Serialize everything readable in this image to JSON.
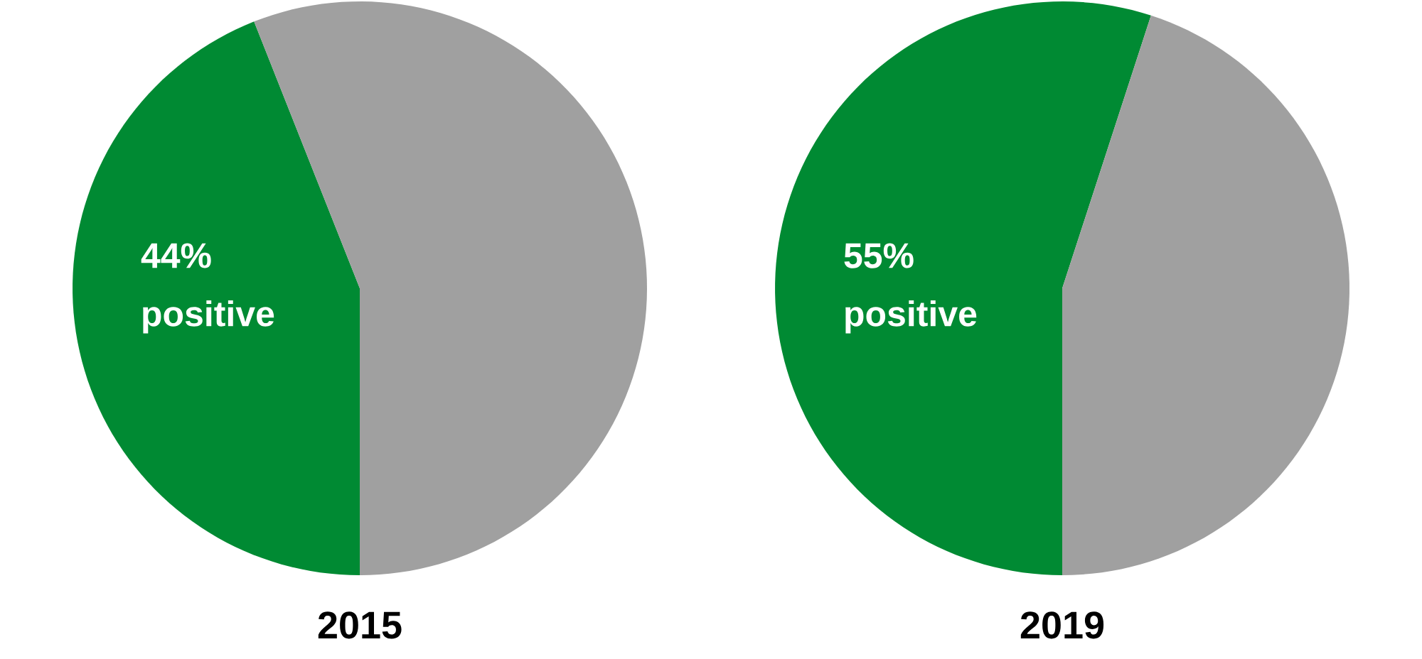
{
  "chart_data": [
    {
      "type": "pie",
      "title": "2015",
      "categories": [
        "positive",
        null
      ],
      "values": [
        44,
        56
      ],
      "value_labels": [
        "44%",
        null
      ],
      "colors": [
        "#008a33",
        "#a0a0a0"
      ]
    },
    {
      "type": "pie",
      "title": "2019",
      "categories": [
        "positive",
        null
      ],
      "values": [
        55,
        45
      ],
      "value_labels": [
        "55%",
        null
      ],
      "colors": [
        "#008a33",
        "#a0a0a0"
      ]
    }
  ]
}
